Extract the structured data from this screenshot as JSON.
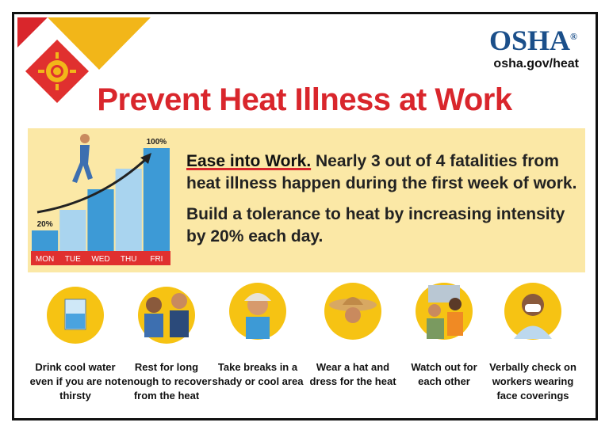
{
  "header": {
    "logo": "OSHA",
    "registered": "®",
    "url": "osha.gov/heat",
    "title": "Prevent Heat Illness at Work"
  },
  "chart_data": {
    "type": "bar",
    "categories": [
      "MON",
      "TUE",
      "WED",
      "THU",
      "FRI"
    ],
    "values": [
      20,
      40,
      60,
      80,
      100
    ],
    "value_labels": [
      "20%",
      null,
      null,
      null,
      "100%"
    ],
    "color": "#3d9ad6",
    "label_bar_color": "#e0302f"
  },
  "panel": {
    "heading": "Ease into Work.",
    "text1": "Nearly 3 out of 4 fatalities from heat illness happen during the first week of work.",
    "text2": "Build a tolerance to heat by increasing intensity by 20% each day."
  },
  "tips": [
    {
      "lines": [
        "Drink cool water",
        "even if you are not",
        "thirsty"
      ]
    },
    {
      "lines": [
        "Rest for long",
        "enough to recover",
        "from the heat"
      ]
    },
    {
      "lines": [
        "Take breaks in a",
        "shady or cool area"
      ]
    },
    {
      "lines": [
        "Wear a hat and",
        "dress for the heat"
      ]
    },
    {
      "lines": [
        "Watch out for",
        "each other"
      ]
    },
    {
      "lines": [
        "Verbally check on",
        "workers wearing",
        "face coverings"
      ]
    }
  ]
}
